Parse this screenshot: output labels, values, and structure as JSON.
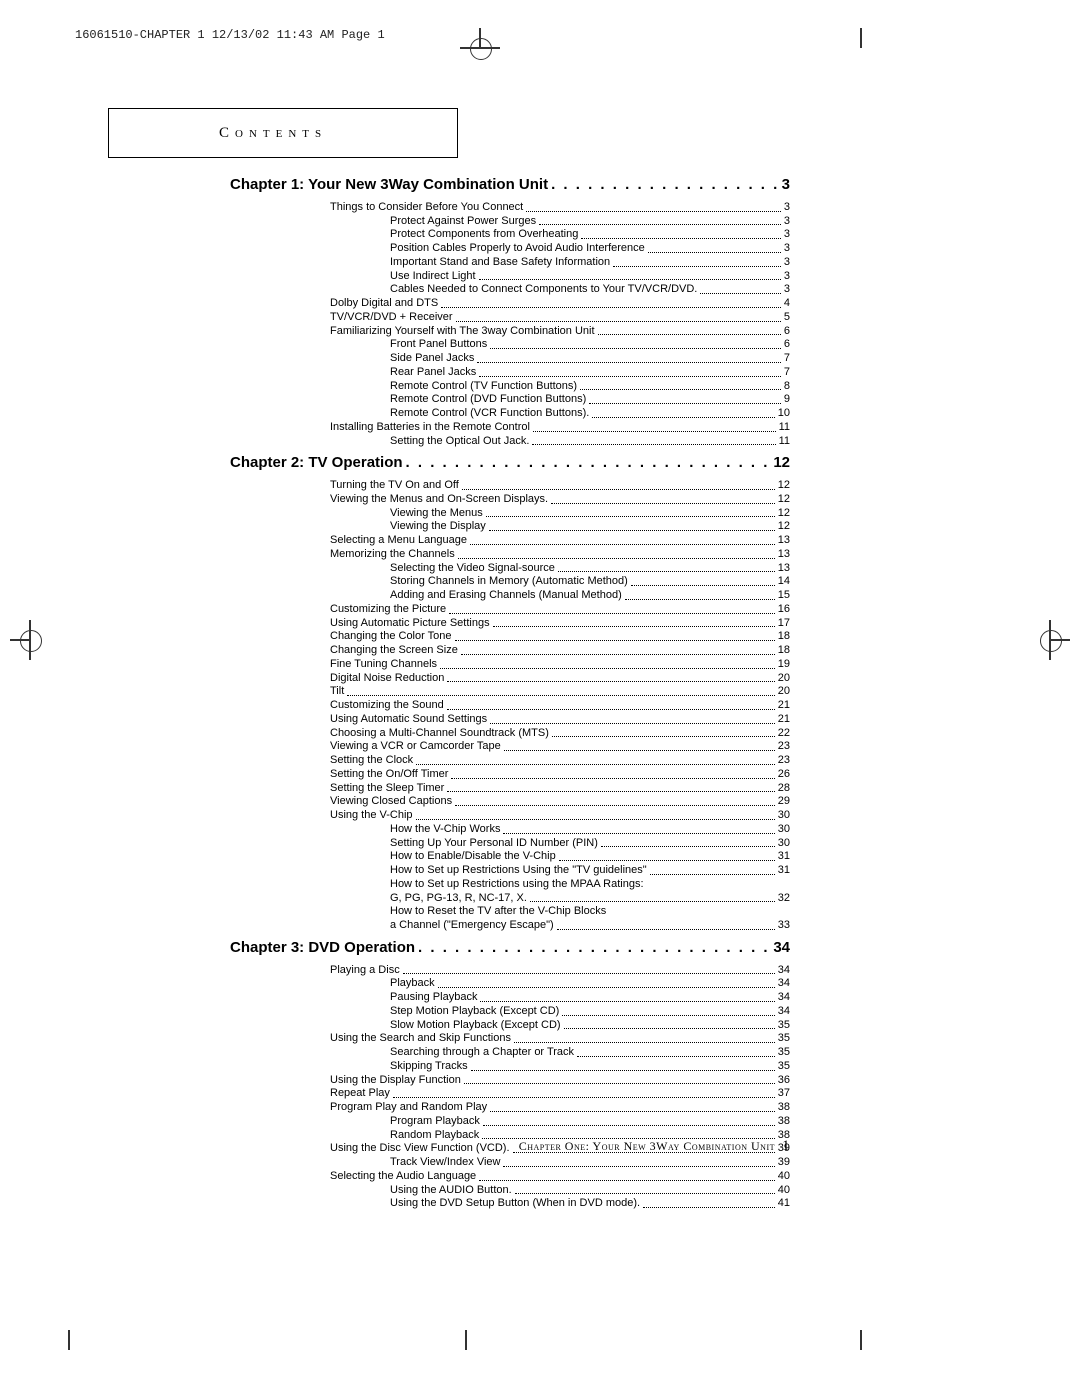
{
  "header": "16061510-CHAPTER 1  12/13/02 11:43 AM  Page 1",
  "contents_label": "Contents",
  "footer_text": "Chapter One: Your New 3Way Combination Unit",
  "footer_page": "1",
  "chapters": [
    {
      "title": "Chapter 1: Your New 3Way Combination Unit",
      "page": "3",
      "entries": [
        {
          "l": 1,
          "t": "Things to Consider Before You Connect",
          "p": "3"
        },
        {
          "l": 2,
          "t": "Protect Against Power Surges",
          "p": "3"
        },
        {
          "l": 2,
          "t": "Protect Components from Overheating",
          "p": "3"
        },
        {
          "l": 2,
          "t": "Position Cables Properly to Avoid Audio Interference",
          "p": "3"
        },
        {
          "l": 2,
          "t": "Important Stand and Base Safety Information",
          "p": "3"
        },
        {
          "l": 2,
          "t": "Use Indirect Light",
          "p": "3"
        },
        {
          "l": 2,
          "t": "Cables Needed to Connect Components to Your TV/VCR/DVD.",
          "p": "3"
        },
        {
          "l": 1,
          "t": "Dolby Digital and DTS",
          "p": "4"
        },
        {
          "l": 1,
          "t": "TV/VCR/DVD + Receiver",
          "p": "5"
        },
        {
          "l": 1,
          "t": "Familiarizing Yourself with The 3way Combination Unit",
          "p": "6"
        },
        {
          "l": 2,
          "t": "Front Panel Buttons",
          "p": "6"
        },
        {
          "l": 2,
          "t": "Side Panel Jacks",
          "p": "7"
        },
        {
          "l": 2,
          "t": "Rear Panel Jacks",
          "p": "7"
        },
        {
          "l": 2,
          "t": "Remote Control (TV Function Buttons)",
          "p": "8"
        },
        {
          "l": 2,
          "t": "Remote Control (DVD Function Buttons)",
          "p": "9"
        },
        {
          "l": 2,
          "t": "Remote Control (VCR Function Buttons).",
          "p": "10"
        },
        {
          "l": 1,
          "t": "Installing Batteries in the Remote Control",
          "p": "11"
        },
        {
          "l": 2,
          "t": "Setting the Optical Out Jack.",
          "p": "11"
        }
      ]
    },
    {
      "title": "Chapter 2: TV Operation",
      "page": "12",
      "entries": [
        {
          "l": 1,
          "t": "Turning the TV On and Off",
          "p": "12"
        },
        {
          "l": 1,
          "t": "Viewing the Menus and On-Screen Displays.",
          "p": "12"
        },
        {
          "l": 2,
          "t": "Viewing the Menus",
          "p": "12"
        },
        {
          "l": 2,
          "t": "Viewing the Display",
          "p": "12"
        },
        {
          "l": 1,
          "t": "Selecting a Menu Language",
          "p": "13"
        },
        {
          "l": 1,
          "t": "Memorizing the Channels",
          "p": "13"
        },
        {
          "l": 2,
          "t": "Selecting the Video Signal-source",
          "p": "13"
        },
        {
          "l": 2,
          "t": "Storing Channels in Memory (Automatic Method)",
          "p": "14"
        },
        {
          "l": 2,
          "t": "Adding and Erasing Channels (Manual Method)",
          "p": "15"
        },
        {
          "l": 1,
          "t": "Customizing the Picture",
          "p": "16"
        },
        {
          "l": 1,
          "t": "Using Automatic Picture Settings",
          "p": "17"
        },
        {
          "l": 1,
          "t": "Changing the Color Tone",
          "p": "18"
        },
        {
          "l": 1,
          "t": "Changing the Screen Size",
          "p": "18"
        },
        {
          "l": 1,
          "t": "Fine Tuning Channels",
          "p": "19"
        },
        {
          "l": 1,
          "t": "Digital Noise Reduction",
          "p": "20"
        },
        {
          "l": 1,
          "t": "Tilt",
          "p": "20"
        },
        {
          "l": 1,
          "t": "Customizing the Sound",
          "p": "21"
        },
        {
          "l": 1,
          "t": "Using Automatic Sound Settings",
          "p": "21"
        },
        {
          "l": 1,
          "t": "Choosing a Multi-Channel Soundtrack (MTS)",
          "p": "22"
        },
        {
          "l": 1,
          "t": "Viewing a VCR or Camcorder Tape",
          "p": "23"
        },
        {
          "l": 1,
          "t": "Setting the Clock",
          "p": "23"
        },
        {
          "l": 1,
          "t": "Setting the On/Off Timer",
          "p": "26"
        },
        {
          "l": 1,
          "t": "Setting the Sleep Timer",
          "p": "28"
        },
        {
          "l": 1,
          "t": "Viewing Closed Captions",
          "p": "29"
        },
        {
          "l": 1,
          "t": "Using the V-Chip",
          "p": "30"
        },
        {
          "l": 2,
          "t": "How the V-Chip Works",
          "p": "30"
        },
        {
          "l": 2,
          "t": "Setting Up Your Personal ID Number (PIN)",
          "p": "30"
        },
        {
          "l": 2,
          "t": "How to Enable/Disable the V-Chip",
          "p": "31"
        },
        {
          "l": 2,
          "t": "How to Set up Restrictions Using the \"TV guidelines\"",
          "p": "31"
        },
        {
          "l": 2,
          "t": "How to Set up Restrictions using the MPAA Ratings:",
          "nopage": true
        },
        {
          "l": 2,
          "t": "G, PG, PG-13, R, NC-17, X.",
          "p": "32"
        },
        {
          "l": 2,
          "t": "How to Reset the TV after the V-Chip Blocks",
          "nopage": true
        },
        {
          "l": 2,
          "t": "a Channel (\"Emergency Escape\")",
          "p": "33"
        }
      ]
    },
    {
      "title": "Chapter 3: DVD Operation",
      "page": "34",
      "entries": [
        {
          "l": 1,
          "t": "Playing a Disc",
          "p": "34"
        },
        {
          "l": 2,
          "t": "Playback",
          "p": "34"
        },
        {
          "l": 2,
          "t": "Pausing Playback",
          "p": "34"
        },
        {
          "l": 2,
          "t": "Step Motion Playback (Except CD)",
          "p": "34"
        },
        {
          "l": 2,
          "t": "Slow Motion Playback (Except CD)",
          "p": "35"
        },
        {
          "l": 1,
          "t": "Using the Search and Skip Functions",
          "p": "35"
        },
        {
          "l": 2,
          "t": "Searching through a Chapter or Track",
          "p": "35"
        },
        {
          "l": 2,
          "t": "Skipping Tracks",
          "p": "35"
        },
        {
          "l": 1,
          "t": "Using the Display Function",
          "p": "36"
        },
        {
          "l": 1,
          "t": "Repeat Play",
          "p": "37"
        },
        {
          "l": 1,
          "t": "Program Play and Random Play",
          "p": "38"
        },
        {
          "l": 2,
          "t": "Program Playback",
          "p": "38"
        },
        {
          "l": 2,
          "t": "Random Playback",
          "p": "38"
        },
        {
          "l": 1,
          "t": "Using the Disc View Function (VCD).",
          "p": "39"
        },
        {
          "l": 2,
          "t": "Track View/Index View",
          "p": "39"
        },
        {
          "l": 1,
          "t": "Selecting the Audio Language",
          "p": "40"
        },
        {
          "l": 2,
          "t": "Using the AUDIO Button.",
          "p": "40"
        },
        {
          "l": 2,
          "t": "Using the DVD Setup Button (When in DVD mode).",
          "p": "41"
        }
      ]
    }
  ]
}
